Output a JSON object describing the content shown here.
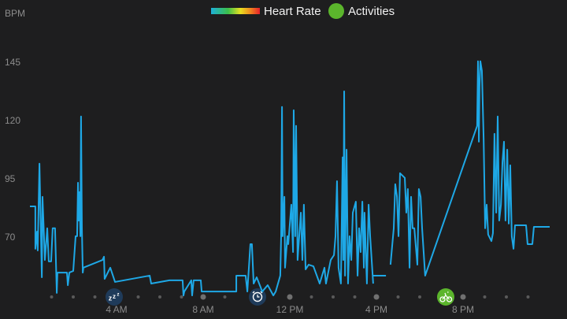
{
  "chart_data": {
    "type": "line",
    "y_label": "BPM",
    "ylim": [
      45,
      150
    ],
    "yticks": [
      70,
      95,
      120,
      145
    ],
    "xlim": [
      0,
      24
    ],
    "xticks": [
      {
        "value": 4,
        "label": "4 AM"
      },
      {
        "value": 8,
        "label": "8 AM"
      },
      {
        "value": 12,
        "label": "12 PM"
      },
      {
        "value": 16,
        "label": "4 PM"
      },
      {
        "value": 20,
        "label": "8 PM"
      }
    ],
    "x": [
      0,
      0.25,
      0.25,
      0.33,
      0.36,
      0.44,
      0.51,
      0.55,
      0.58,
      0.65,
      0.69,
      0.8,
      0.87,
      0.98,
      1.05,
      1.16,
      1.24,
      1.27,
      1.71,
      1.75,
      1.82,
      2.0,
      2.11,
      2.18,
      2.22,
      2.25,
      2.29,
      2.33,
      2.36,
      2.4,
      2.44,
      2.47,
      3.35,
      3.42,
      3.45,
      3.71,
      3.93,
      5.53,
      5.6,
      6.44,
      7.05,
      7.09,
      7.13,
      7.45,
      7.49,
      7.56,
      7.89,
      7.93,
      9.53,
      9.53,
      9.96,
      10.04,
      10.18,
      10.25,
      10.33,
      10.47,
      10.73,
      10.98,
      11.24,
      11.35,
      11.56,
      11.6,
      11.64,
      11.67,
      11.75,
      11.78,
      11.89,
      11.93,
      12.07,
      12.15,
      12.18,
      12.25,
      12.29,
      12.36,
      12.51,
      12.58,
      12.65,
      12.73,
      12.87,
      13.09,
      13.38,
      13.6,
      13.67,
      13.89,
      14.04,
      14.11,
      14.18,
      14.25,
      14.36,
      14.44,
      14.47,
      14.51,
      14.55,
      14.62,
      14.69,
      14.76,
      14.84,
      14.91,
      15.05,
      15.13,
      15.2,
      15.27,
      15.35,
      15.42,
      15.45,
      15.56,
      15.64,
      15.71,
      15.85,
      null,
      15.85,
      16.44,
      null,
      16.65,
      16.8,
      16.87,
      16.95,
      17.02,
      17.09,
      17.31,
      17.38,
      17.45,
      17.53,
      17.6,
      17.67,
      17.75,
      17.89,
      17.96,
      18.04,
      18.11,
      18.25,
      20.65,
      20.69,
      20.73,
      20.76,
      20.8,
      20.87,
      20.95,
      21.02,
      21.09,
      21.16,
      21.31,
      21.38,
      21.45,
      21.53,
      21.6,
      21.67,
      21.75,
      21.82,
      21.89,
      21.96,
      22.04,
      22.11,
      22.18,
      22.25,
      22.33,
      22.4,
      22.91,
      22.98,
      23.2,
      23.27,
      24
    ],
    "series": [
      {
        "name": "Heart Rate",
        "color": "#1ea8e6",
        "values": [
          83.5,
          83.5,
          65.3,
          72.7,
          64.6,
          101.8,
          70.7,
          53.1,
          87.6,
          70.7,
          60.5,
          74.1,
          59.9,
          59.9,
          74.1,
          74.1,
          46.4,
          55.1,
          55.1,
          49.7,
          55.1,
          55.8,
          70.7,
          70.7,
          93.6,
          77.4,
          89.6,
          70.7,
          122,
          74.1,
          55.1,
          57.2,
          60.5,
          61.9,
          52.4,
          57.2,
          51.1,
          53.8,
          50.4,
          51.8,
          51.8,
          45.3,
          47,
          51.8,
          45.3,
          51.8,
          51.8,
          47,
          47,
          53.8,
          53.8,
          47,
          67.3,
          67.3,
          50.4,
          53.1,
          47,
          49.7,
          45.3,
          47,
          53.8,
          70.7,
          126.1,
          70.7,
          87.6,
          57.2,
          70.7,
          67.3,
          84.2,
          63.9,
          124.7,
          70.7,
          118,
          60.5,
          80.8,
          60.5,
          84.2,
          56.5,
          58.5,
          57.8,
          50.4,
          57.2,
          50.4,
          60.5,
          62.6,
          70.7,
          94.3,
          57.2,
          50.4,
          104.5,
          60.5,
          132.8,
          53.8,
          107.8,
          50.4,
          70.7,
          60.5,
          80.8,
          85.5,
          53.8,
          74.1,
          63.9,
          85.5,
          57.2,
          80.8,
          50.4,
          84.2,
          70.7,
          50.4,
          null,
          53.8,
          53.8,
          null,
          58.5,
          74.1,
          93,
          87.6,
          70.7,
          97.7,
          95.7,
          80.8,
          90.9,
          57.2,
          87.6,
          74.1,
          74.1,
          58.5,
          90.9,
          87.6,
          74.1,
          53.8,
          118,
          145.7,
          111.2,
          134.9,
          145.7,
          141.6,
          112.6,
          74.1,
          84.2,
          71.4,
          68.6,
          72,
          114.6,
          80.8,
          122,
          77.4,
          84.2,
          102.4,
          111.2,
          77.4,
          107.8,
          76.1,
          101.1,
          70.7,
          65.3,
          75.4,
          75.4,
          67.3,
          67.3,
          74.7,
          74.7
        ]
      }
    ],
    "activities": {
      "name": "Activities",
      "color": "#5bb52c",
      "x": [
        19.2
      ]
    }
  }
}
